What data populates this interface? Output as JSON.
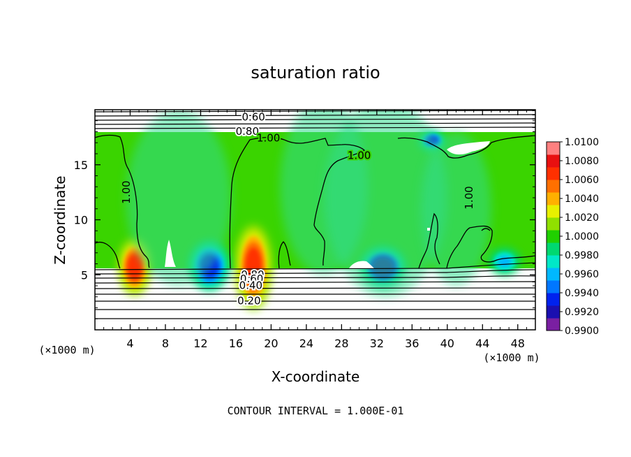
{
  "chart_data": {
    "type": "heatmap",
    "title": "saturation ratio",
    "xlabel": "X-coordinate",
    "ylabel": "Z-coordinate",
    "x_unit": "(×1000 m)",
    "z_unit": "(×1000 m)",
    "footer": "CONTOUR INTERVAL = 1.000E-01",
    "xlim": [
      0,
      50
    ],
    "ylim": [
      0,
      20
    ],
    "x_ticks": [
      4,
      8,
      12,
      16,
      20,
      24,
      28,
      32,
      36,
      40,
      44,
      48
    ],
    "y_ticks": [
      5,
      10,
      15
    ],
    "colorbar": {
      "min": 0.99,
      "max": 1.01,
      "labels": [
        "1.0100",
        "1.0080",
        "1.0060",
        "1.0040",
        "1.0020",
        "1.0000",
        "0.9980",
        "0.9960",
        "0.9940",
        "0.9920",
        "0.9900"
      ],
      "colors": [
        "#7a1fa2",
        "#1b0fb0",
        "#0022ee",
        "#0077ff",
        "#00b8ff",
        "#00e8c8",
        "#00d870",
        "#20d000",
        "#90e000",
        "#e8f000",
        "#ffb000",
        "#ff7000",
        "#ff3000",
        "#e81010",
        "#ff8080"
      ]
    },
    "contour_labels": [
      {
        "text": "0.60",
        "x": 18.0,
        "z": 19.3
      },
      {
        "text": "0.80",
        "x": 17.3,
        "z": 18.0
      },
      {
        "text": "1.00",
        "x": 19.7,
        "z": 17.4
      },
      {
        "text": "1.00",
        "x": 3.6,
        "z": 12.5
      },
      {
        "text": "1.00",
        "x": 30.0,
        "z": 15.8
      },
      {
        "text": "1.00",
        "x": 42.5,
        "z": 12.0
      },
      {
        "text": "0.80",
        "x": 17.9,
        "z": 5.0
      },
      {
        "text": "0.60",
        "x": 17.8,
        "z": 4.6
      },
      {
        "text": "0.40",
        "x": 17.7,
        "z": 4.0
      },
      {
        "text": "0.20",
        "x": 17.5,
        "z": 2.6
      }
    ],
    "features": [
      {
        "kind": "peak",
        "x": 4.5,
        "z": 5.7,
        "width": 3.2,
        "height": 2.3,
        "value": 1.0065
      },
      {
        "kind": "peak",
        "x": 18.0,
        "z": 5.7,
        "width": 3.6,
        "height": 3.5,
        "value": 1.007
      },
      {
        "kind": "trough",
        "x": 13.0,
        "z": 5.8,
        "width": 4.0,
        "height": 2.0,
        "value": 0.993
      },
      {
        "kind": "trough",
        "x": 32.7,
        "z": 5.7,
        "width": 4.5,
        "height": 1.6,
        "value": 0.992
      },
      {
        "kind": "trough",
        "x": 38.3,
        "z": 17.2,
        "width": 2.5,
        "height": 0.7,
        "value": 0.993
      },
      {
        "kind": "trough",
        "x": 46.5,
        "z": 6.2,
        "width": 3.0,
        "height": 1.0,
        "value": 0.996
      }
    ]
  }
}
